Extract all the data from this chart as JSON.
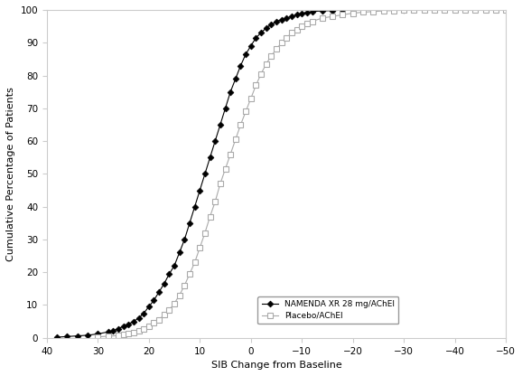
{
  "title": "",
  "xlabel": "SIB Change from Baseline",
  "ylabel": "Cumulative Percentage of Patients",
  "xlim": [
    40,
    -50
  ],
  "ylim": [
    0,
    100
  ],
  "xticks": [
    40,
    30,
    20,
    10,
    0,
    -10,
    -20,
    -30,
    -40,
    -50
  ],
  "yticks": [
    0,
    10,
    20,
    30,
    40,
    50,
    60,
    70,
    80,
    90,
    100
  ],
  "namenda_color": "#000000",
  "placebo_color": "#aaaaaa",
  "background_color": "#ffffff",
  "legend_labels": [
    "NAMENDA XR 28 mg/AChEI",
    "Placebo/AChEI"
  ],
  "namenda_x": [
    38,
    36,
    34,
    32,
    30,
    28,
    27,
    26,
    25,
    24,
    23,
    22,
    21,
    20,
    19,
    18,
    17,
    16,
    15,
    14,
    13,
    12,
    11,
    10,
    9,
    8,
    7,
    6,
    5,
    4,
    3,
    2,
    1,
    0,
    -1,
    -2,
    -3,
    -4,
    -5,
    -6,
    -7,
    -8,
    -9,
    -10,
    -11,
    -12,
    -14,
    -16,
    -18,
    -20,
    -22,
    -24,
    -26,
    -28,
    -30
  ],
  "namenda_y": [
    0.2,
    0.4,
    0.6,
    0.8,
    1.2,
    1.8,
    2.2,
    2.8,
    3.5,
    4.2,
    5.0,
    6.0,
    7.5,
    9.5,
    11.5,
    14.0,
    16.5,
    19.5,
    22.0,
    26.0,
    30.0,
    35.0,
    40.0,
    45.0,
    50.0,
    55.0,
    60.0,
    65.0,
    70.0,
    75.0,
    79.0,
    83.0,
    86.5,
    89.0,
    91.5,
    93.0,
    94.5,
    95.5,
    96.5,
    97.0,
    97.5,
    98.0,
    98.5,
    99.0,
    99.2,
    99.5,
    99.7,
    99.8,
    99.9,
    100.0,
    100.0,
    100.0,
    100.0,
    100.0,
    100.0
  ],
  "placebo_x": [
    30,
    28,
    26,
    25,
    24,
    23,
    22,
    21,
    20,
    19,
    18,
    17,
    16,
    15,
    14,
    13,
    12,
    11,
    10,
    9,
    8,
    7,
    6,
    5,
    4,
    3,
    2,
    1,
    0,
    -1,
    -2,
    -3,
    -4,
    -5,
    -6,
    -7,
    -8,
    -9,
    -10,
    -11,
    -12,
    -14,
    -16,
    -18,
    -20,
    -22,
    -24,
    -26,
    -28,
    -30,
    -32,
    -34,
    -36,
    -38,
    -40,
    -42,
    -44,
    -46,
    -48,
    -50
  ],
  "placebo_y": [
    0.3,
    0.5,
    0.7,
    1.0,
    1.3,
    1.7,
    2.2,
    2.8,
    3.5,
    4.5,
    5.5,
    7.0,
    8.5,
    10.5,
    13.0,
    16.0,
    19.5,
    23.0,
    27.5,
    32.0,
    37.0,
    41.5,
    47.0,
    51.5,
    56.0,
    60.5,
    65.0,
    69.0,
    73.0,
    77.0,
    80.5,
    83.5,
    86.0,
    88.0,
    90.0,
    91.5,
    93.0,
    94.0,
    95.0,
    95.8,
    96.5,
    97.5,
    98.0,
    98.5,
    99.0,
    99.3,
    99.5,
    99.7,
    99.8,
    99.9,
    100.0,
    100.0,
    100.0,
    100.0,
    100.0,
    100.0,
    100.0,
    100.0,
    100.0,
    100.0
  ]
}
